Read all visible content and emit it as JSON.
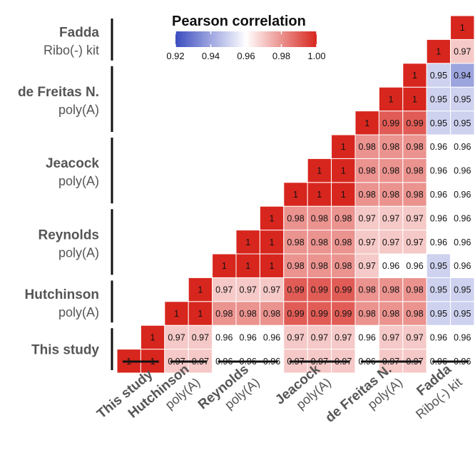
{
  "chart_data": {
    "type": "heatmap",
    "title": "Pearson correlation",
    "color_scale": {
      "min": 0.92,
      "mid": 0.96,
      "max": 1.0,
      "ticks": [
        "0.92",
        "0.94",
        "0.96",
        "0.98",
        "1.00"
      ],
      "low_color": "#3b4cc0",
      "mid_color": "#ffffff",
      "high_color": "#d7261e"
    },
    "groups": [
      {
        "name": "This study",
        "subtitle": ""
      },
      {
        "name": "Hutchinson",
        "subtitle": "poly(A)"
      },
      {
        "name": "Reynolds",
        "subtitle": "poly(A)"
      },
      {
        "name": "Jeacock",
        "subtitle": "poly(A)"
      },
      {
        "name": "de Freitas N.",
        "subtitle": "poly(A)"
      },
      {
        "name": "Fadda",
        "subtitle": "Ribo(-) kit"
      }
    ],
    "group_sizes": [
      2,
      2,
      3,
      3,
      3,
      2
    ],
    "rows": [
      [
        "1",
        "1",
        "0.97",
        "0.97",
        "0.96",
        "0.96",
        "0.96",
        "0.97",
        "0.97",
        "0.97",
        "0.96",
        "0.97",
        "0.97",
        "0.96",
        "0.96"
      ],
      [
        "1",
        "0.97",
        "0.97",
        "0.96",
        "0.96",
        "0.96",
        "0.97",
        "0.97",
        "0.97",
        "0.96",
        "0.97",
        "0.97",
        "0.96",
        "0.96"
      ],
      [
        "1",
        "1",
        "0.98",
        "0.98",
        "0.98",
        "0.99",
        "0.99",
        "0.99",
        "0.98",
        "0.98",
        "0.98",
        "0.95",
        "0.95"
      ],
      [
        "1",
        "0.97",
        "0.97",
        "0.97",
        "0.99",
        "0.99",
        "0.99",
        "0.98",
        "0.98",
        "0.98",
        "0.95",
        "0.95"
      ],
      [
        "1",
        "1",
        "1",
        "0.98",
        "0.98",
        "0.98",
        "0.97",
        "0.96",
        "0.96",
        "0.95",
        "0.96"
      ],
      [
        "1",
        "1",
        "0.98",
        "0.98",
        "0.98",
        "0.97",
        "0.97",
        "0.97",
        "0.96",
        "0.96"
      ],
      [
        "1",
        "0.98",
        "0.98",
        "0.98",
        "0.97",
        "0.97",
        "0.97",
        "0.96",
        "0.96"
      ],
      [
        "1",
        "1",
        "1",
        "0.98",
        "0.98",
        "0.98",
        "0.96",
        "0.96"
      ],
      [
        "1",
        "1",
        "0.98",
        "0.98",
        "0.98",
        "0.96",
        "0.96"
      ],
      [
        "1",
        "0.98",
        "0.98",
        "0.98",
        "0.96",
        "0.96"
      ],
      [
        "1",
        "0.99",
        "0.99",
        "0.95",
        "0.95"
      ],
      [
        "1",
        "1",
        "0.95",
        "0.95"
      ],
      [
        "1",
        "0.95",
        "0.94"
      ],
      [
        "1",
        "0.97"
      ],
      [
        "1"
      ]
    ]
  }
}
